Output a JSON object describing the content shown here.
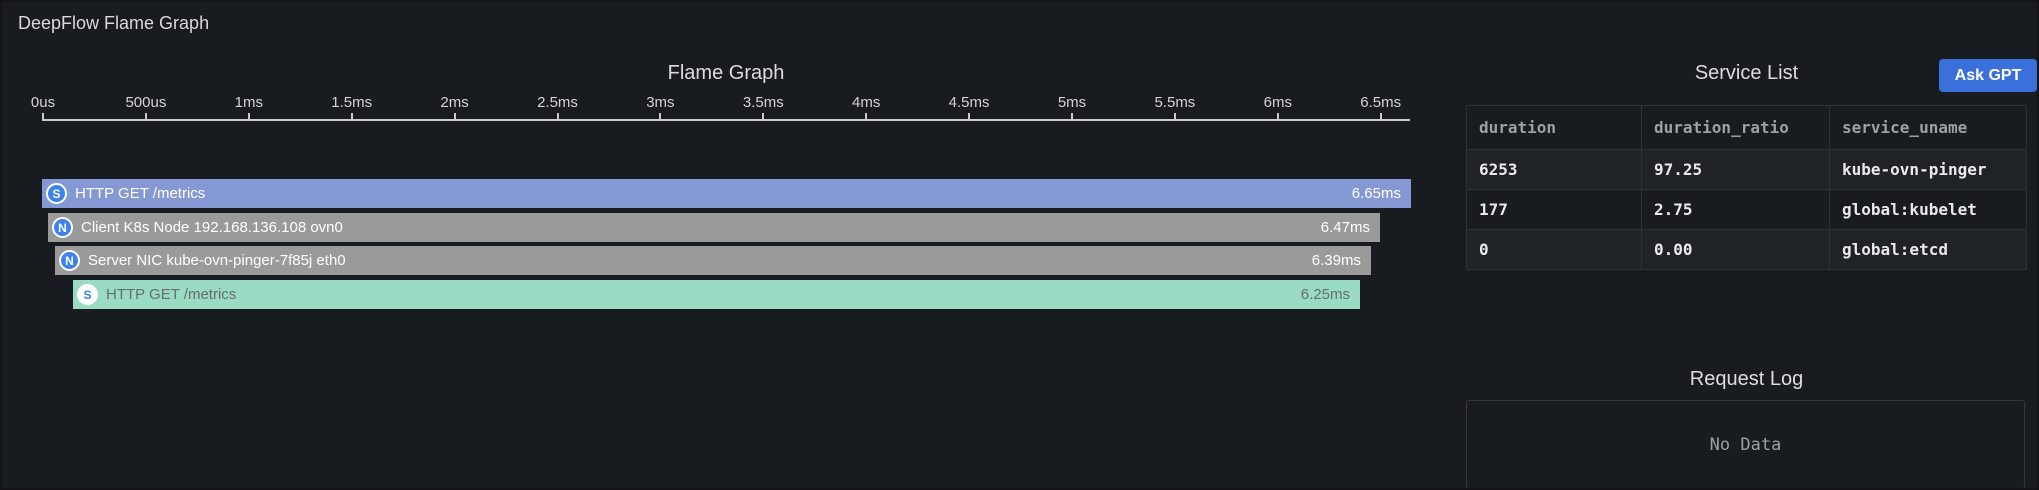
{
  "panel": {
    "title": "DeepFlow Flame Graph"
  },
  "colors": {
    "panel_bg": "#181b1f",
    "span_blue": "#8498d4",
    "span_gray": "#9a9a9a",
    "span_green": "#9adbc3",
    "badge_blue": "#3e82ec",
    "button_blue": "#3a70da",
    "axis": "#c9cacc"
  },
  "flame": {
    "title": "Flame Graph",
    "axis_ticks": [
      "0us",
      "500us",
      "1ms",
      "1.5ms",
      "2ms",
      "2.5ms",
      "3ms",
      "3.5ms",
      "4ms",
      "4.5ms",
      "5ms",
      "5.5ms",
      "6ms",
      "6.5ms"
    ],
    "bars": [
      {
        "icon": "S",
        "icon_style": "solid",
        "style": "blue",
        "label": "HTTP GET /metrics",
        "duration_ms": 6.65,
        "duration_label": "6.65ms"
      },
      {
        "icon": "N",
        "icon_style": "solid",
        "style": "gray",
        "label": "Client K8s Node 192.168.136.108 ovn0",
        "duration_ms": 6.47,
        "duration_label": "6.47ms"
      },
      {
        "icon": "N",
        "icon_style": "solid",
        "style": "gray",
        "label": "Server NIC kube-ovn-pinger-7f85j eth0",
        "duration_ms": 6.39,
        "duration_label": "6.39ms"
      },
      {
        "icon": "S",
        "icon_style": "inverse",
        "style": "green",
        "label": "HTTP GET /metrics",
        "duration_ms": 6.25,
        "duration_label": "6.25ms"
      }
    ]
  },
  "service_list": {
    "title": "Service List",
    "ask_gpt_label": "Ask GPT",
    "columns": [
      "duration",
      "duration_ratio",
      "service_uname"
    ],
    "rows": [
      [
        "6253",
        "97.25",
        "kube-ovn-pinger"
      ],
      [
        "177",
        "2.75",
        "global:kubelet"
      ],
      [
        "0",
        "0.00",
        "global:etcd"
      ]
    ]
  },
  "request_log": {
    "title": "Request Log",
    "empty_text": "No Data"
  },
  "chart_data": {
    "type": "flame",
    "title": "Flame Graph",
    "x_unit": "ms",
    "xlim_ms": [
      0,
      6.65
    ],
    "axis_tick_labels": [
      "0us",
      "500us",
      "1ms",
      "1.5ms",
      "2ms",
      "2.5ms",
      "3ms",
      "3.5ms",
      "4ms",
      "4.5ms",
      "5ms",
      "5.5ms",
      "6ms",
      "6.5ms"
    ],
    "frames": [
      {
        "depth": 0,
        "kind": "S",
        "label": "HTTP GET /metrics",
        "duration_ms": 6.65
      },
      {
        "depth": 1,
        "kind": "N",
        "label": "Client K8s Node 192.168.136.108 ovn0",
        "duration_ms": 6.47
      },
      {
        "depth": 2,
        "kind": "N",
        "label": "Server NIC kube-ovn-pinger-7f85j eth0",
        "duration_ms": 6.39
      },
      {
        "depth": 3,
        "kind": "S",
        "label": "HTTP GET /metrics",
        "duration_ms": 6.25
      }
    ]
  }
}
